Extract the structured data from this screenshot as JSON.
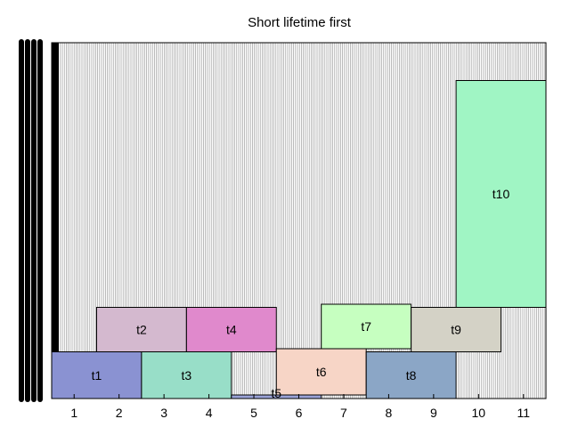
{
  "chart_data": {
    "type": "bar",
    "title": "Short lifetime first",
    "xlabel": "",
    "ylabel": "",
    "xlim": [
      0.5,
      11.5
    ],
    "ylim": [
      0,
      8
    ],
    "xticks": [
      "1",
      "2",
      "3",
      "4",
      "5",
      "6",
      "7",
      "8",
      "9",
      "10",
      "11"
    ],
    "background_pattern": "dense vertical hatch",
    "blocks": [
      {
        "label": "t1",
        "x0": 0.5,
        "x1": 2.5,
        "y0": 0.0,
        "y1": 1.05,
        "color": "#8a92d2"
      },
      {
        "label": "t2",
        "x0": 1.5,
        "x1": 3.5,
        "y0": 1.05,
        "y1": 2.05,
        "color": "#d4b9cf"
      },
      {
        "label": "t3",
        "x0": 2.5,
        "x1": 4.5,
        "y0": 0.0,
        "y1": 1.05,
        "color": "#98dec8"
      },
      {
        "label": "t4",
        "x0": 3.5,
        "x1": 5.5,
        "y0": 1.05,
        "y1": 2.05,
        "color": "#e089cc"
      },
      {
        "label": "t5",
        "x0": 4.5,
        "x1": 6.5,
        "y0": 0.0,
        "y1": 0.08,
        "color": "#9aa3d8"
      },
      {
        "label": "t6",
        "x0": 5.5,
        "x1": 7.5,
        "y0": 0.08,
        "y1": 1.12,
        "color": "#f7d5c6"
      },
      {
        "label": "t7",
        "x0": 6.5,
        "x1": 8.5,
        "y0": 1.12,
        "y1": 2.12,
        "color": "#c6ffc0"
      },
      {
        "label": "t8",
        "x0": 7.5,
        "x1": 9.5,
        "y0": 0.0,
        "y1": 1.05,
        "color": "#8ba6c6"
      },
      {
        "label": "t9",
        "x0": 8.5,
        "x1": 10.5,
        "y0": 1.05,
        "y1": 2.05,
        "color": "#d4d2c6"
      },
      {
        "label": "t10",
        "x0": 9.5,
        "x1": 11.5,
        "y0": 2.05,
        "y1": 7.15,
        "color": "#a0f5c4"
      }
    ]
  }
}
